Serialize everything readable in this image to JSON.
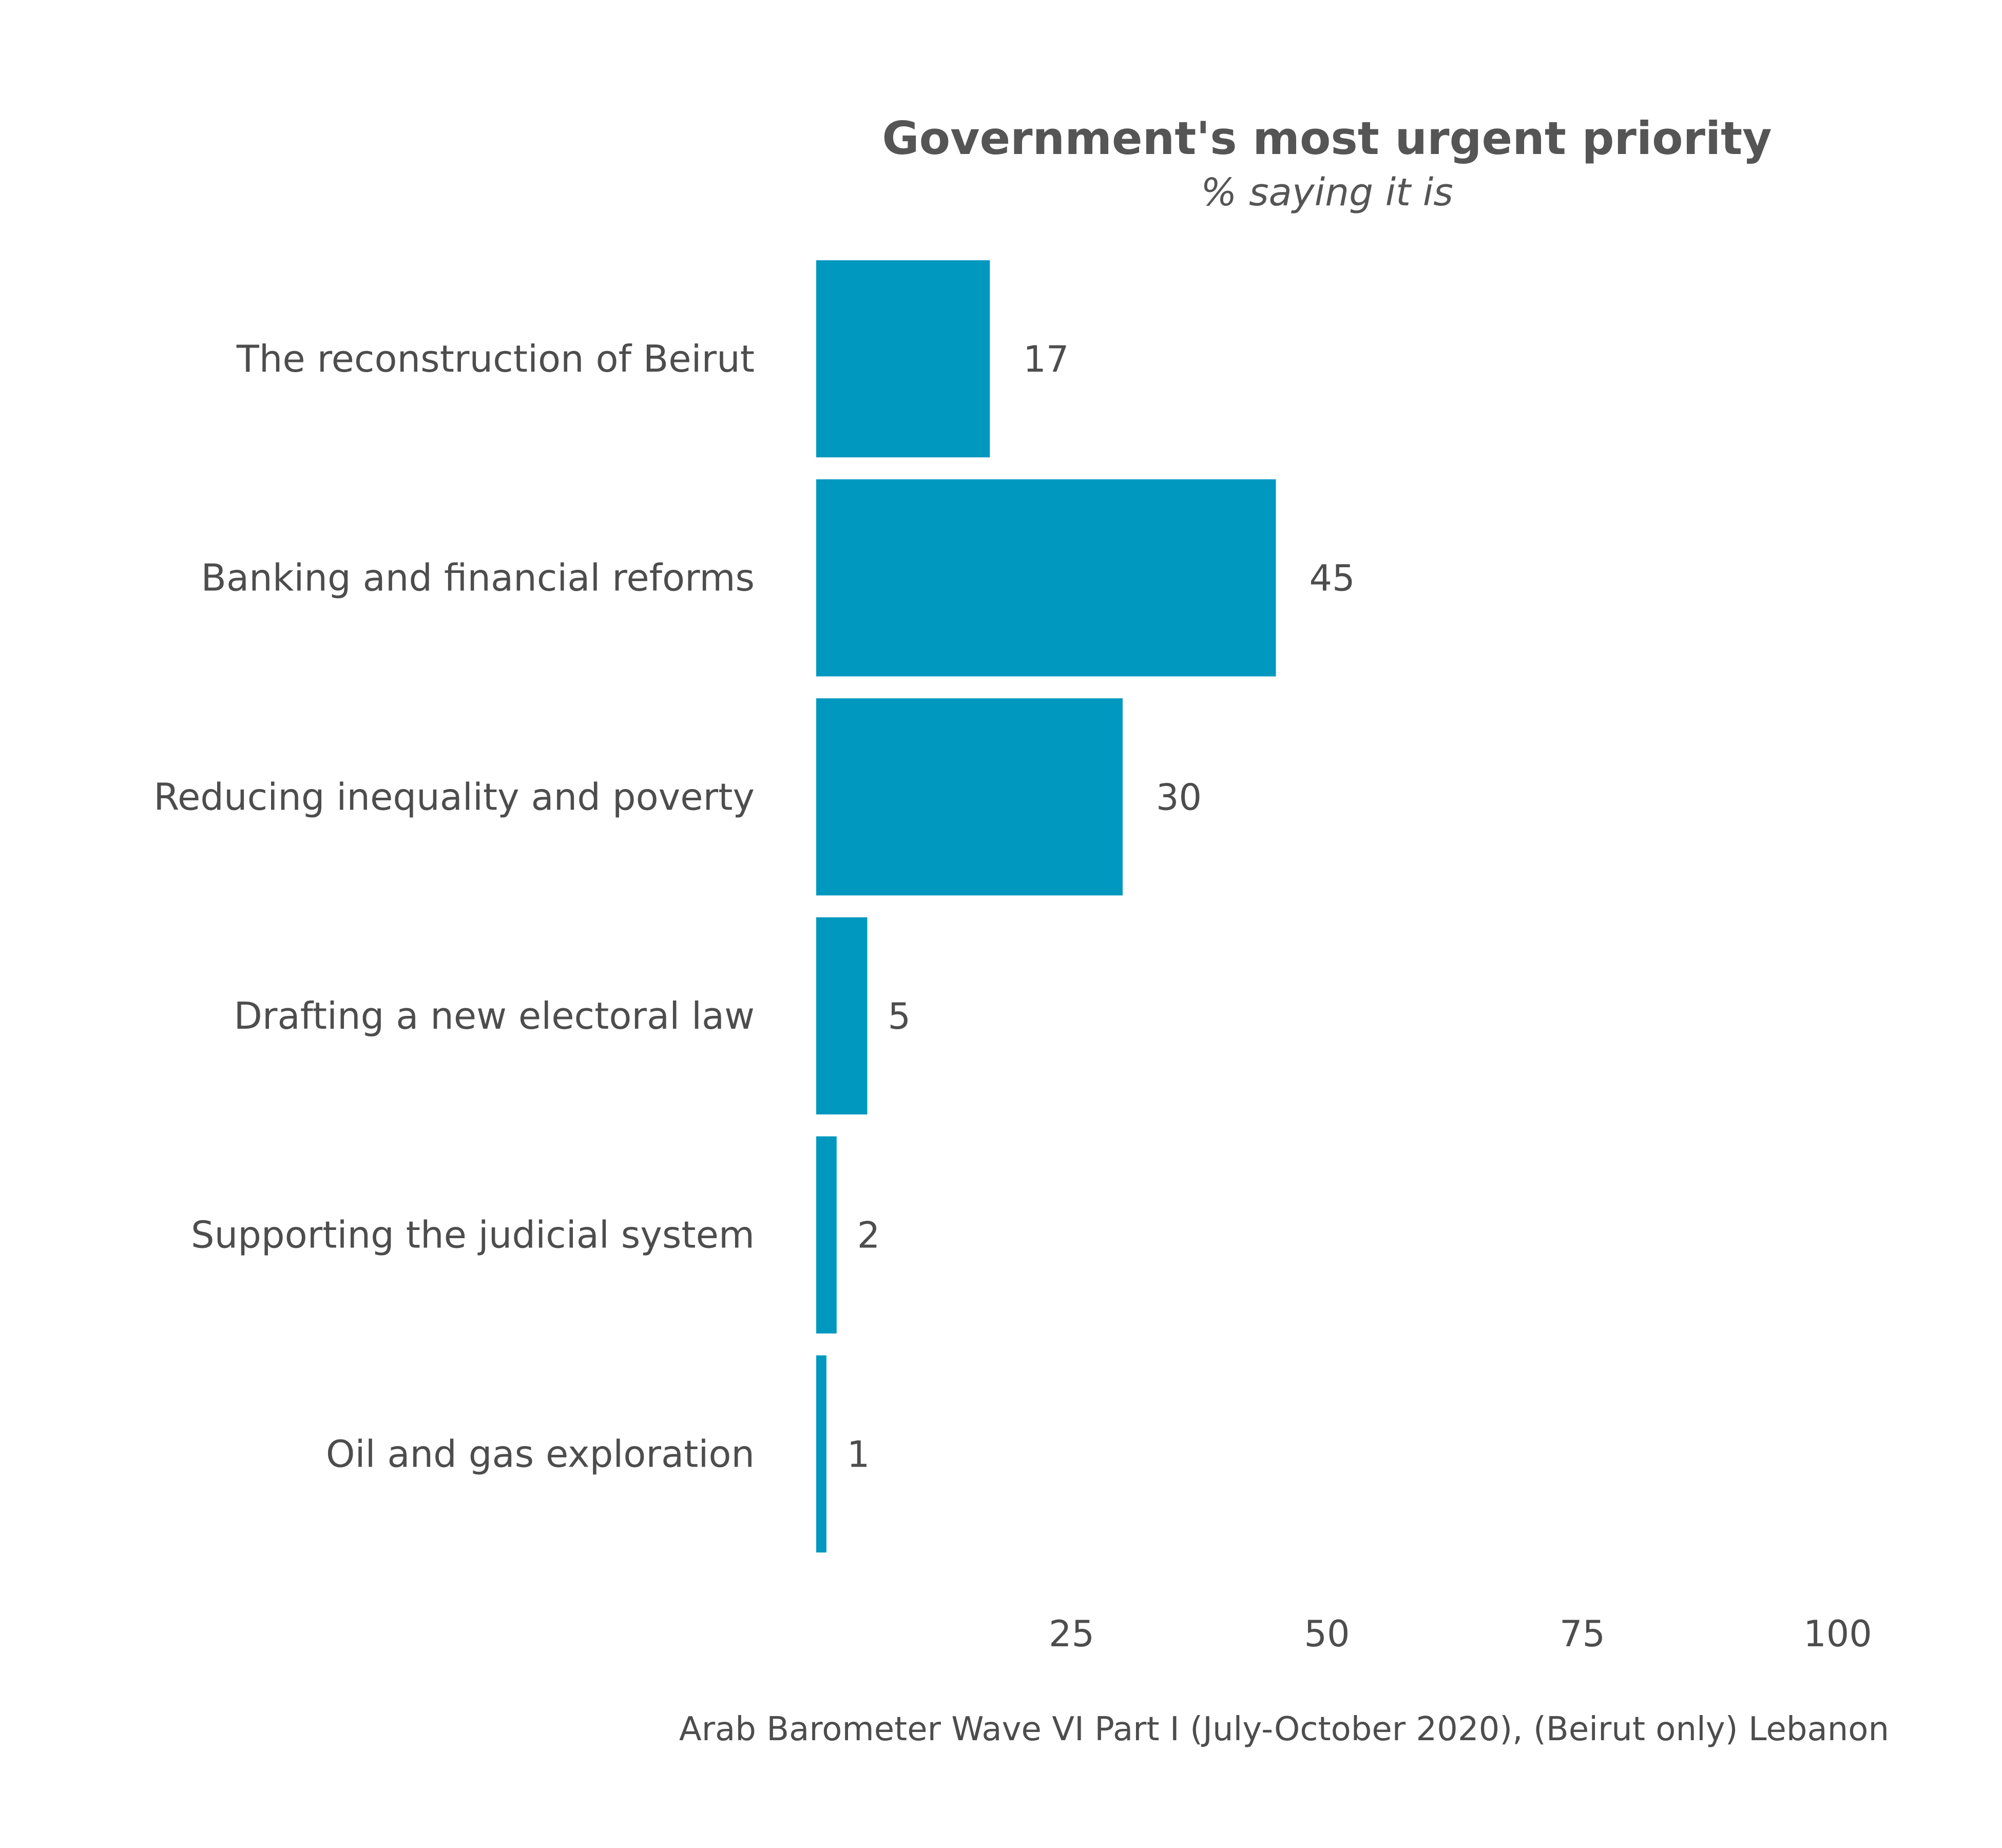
{
  "chart_data": {
    "type": "bar",
    "orientation": "horizontal",
    "title": "Government's most urgent priority",
    "subtitle": "% saying it is",
    "categories": [
      "The reconstruction of Beirut",
      "Banking and financial reforms",
      "Reducing inequality and poverty",
      "Drafting a new electoral law",
      "Supporting the judicial system",
      "Oil and gas exploration"
    ],
    "values": [
      17,
      45,
      30,
      5,
      2,
      1
    ],
    "value_labels": [
      "17",
      "45",
      "30",
      "5",
      "2",
      "1"
    ],
    "xlim": [
      0,
      100
    ],
    "x_ticks": [
      25,
      50,
      75,
      100
    ],
    "x_tick_labels": [
      "25",
      "50",
      "75",
      "100"
    ],
    "xlabel": "",
    "ylabel": "",
    "grid": false,
    "legend": "none",
    "caption": "Arab Barometer Wave VI Part I (July-October 2020), (Beirut only) Lebanon",
    "colors": {
      "bar": "#0098bf",
      "text": "#4d4d4d",
      "title": "#555555"
    }
  }
}
